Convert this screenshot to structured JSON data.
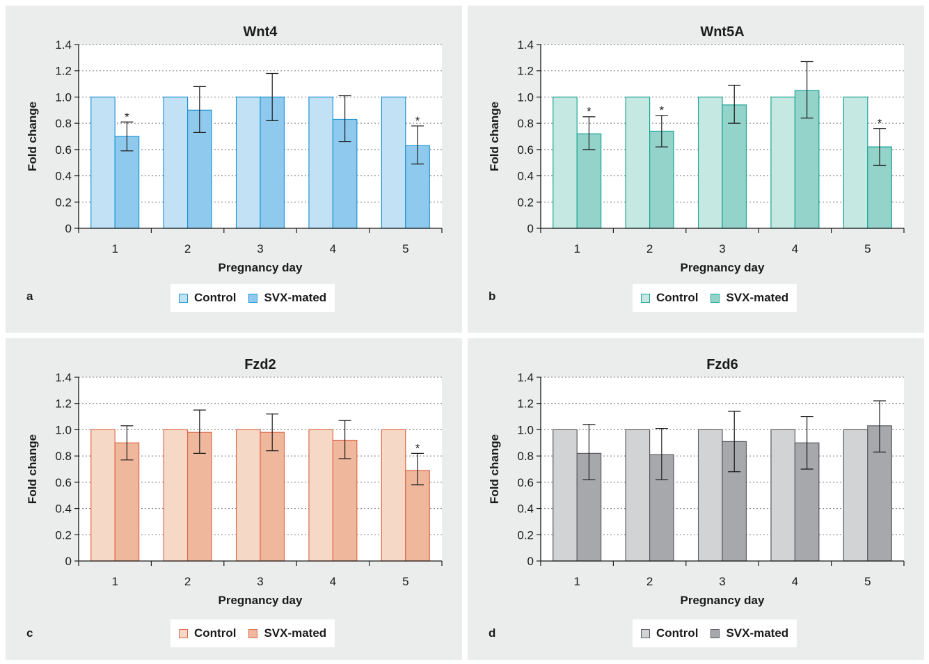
{
  "chart_data": [
    {
      "type": "bar",
      "panel_label": "a",
      "title": "Wnt4",
      "xlabel": "Pregnancy day",
      "ylabel": "Fold change",
      "ylim": [
        0,
        1.4
      ],
      "yticks": [
        "0",
        "0.2",
        "0.4",
        "0.6",
        "0.8",
        "1.0",
        "1.2",
        "1.4"
      ],
      "categories": [
        "1",
        "2",
        "3",
        "4",
        "5"
      ],
      "grid": true,
      "legend_position": "bottom",
      "colors": {
        "control_fill": "#c3e1f5",
        "svx_fill": "#8fcaee",
        "edge": "#1d95d4"
      },
      "series": [
        {
          "name": "Control",
          "values": [
            1.0,
            1.0,
            1.0,
            1.0,
            1.0
          ]
        },
        {
          "name": "SVX-mated",
          "values": [
            0.7,
            0.9,
            1.0,
            0.83,
            0.63
          ],
          "error_upper": [
            0.81,
            1.08,
            1.18,
            1.01,
            0.78
          ],
          "error_lower": [
            0.59,
            0.73,
            0.82,
            0.66,
            0.49
          ],
          "significant": [
            "*",
            "",
            "",
            "",
            "*"
          ]
        }
      ]
    },
    {
      "type": "bar",
      "panel_label": "b",
      "title": "Wnt5A",
      "xlabel": "Pregnancy day",
      "ylabel": "Fold change",
      "ylim": [
        0,
        1.4
      ],
      "yticks": [
        "0",
        "0.2",
        "0.4",
        "0.6",
        "0.8",
        "1.0",
        "1.2",
        "1.4"
      ],
      "categories": [
        "1",
        "2",
        "3",
        "4",
        "5"
      ],
      "grid": true,
      "legend_position": "bottom",
      "colors": {
        "control_fill": "#c6e8e2",
        "svx_fill": "#93d3ca",
        "edge": "#1aa596"
      },
      "series": [
        {
          "name": "Control",
          "values": [
            1.0,
            1.0,
            1.0,
            1.0,
            1.0
          ]
        },
        {
          "name": "SVX-mated",
          "values": [
            0.72,
            0.74,
            0.94,
            1.05,
            0.62
          ],
          "error_upper": [
            0.85,
            0.86,
            1.09,
            1.27,
            0.76
          ],
          "error_lower": [
            0.6,
            0.62,
            0.8,
            0.84,
            0.48
          ],
          "significant": [
            "*",
            "*",
            "",
            "",
            "*"
          ]
        }
      ]
    },
    {
      "type": "bar",
      "panel_label": "c",
      "title": "Fzd2",
      "xlabel": "Pregnancy day",
      "ylabel": "Fold change",
      "ylim": [
        0,
        1.4
      ],
      "yticks": [
        "0",
        "0.2",
        "0.4",
        "0.6",
        "0.8",
        "1.0",
        "1.2",
        "1.4"
      ],
      "categories": [
        "1",
        "2",
        "3",
        "4",
        "5"
      ],
      "grid": true,
      "legend_position": "bottom",
      "colors": {
        "control_fill": "#f6d8c6",
        "svx_fill": "#efb79c",
        "edge": "#dd6a4a"
      },
      "series": [
        {
          "name": "Control",
          "values": [
            1.0,
            1.0,
            1.0,
            1.0,
            1.0
          ]
        },
        {
          "name": "SVX-mated",
          "values": [
            0.9,
            0.98,
            0.98,
            0.92,
            0.69
          ],
          "error_upper": [
            1.03,
            1.15,
            1.12,
            1.07,
            0.82
          ],
          "error_lower": [
            0.77,
            0.82,
            0.84,
            0.78,
            0.58
          ],
          "significant": [
            "",
            "",
            "",
            "",
            "*"
          ]
        }
      ]
    },
    {
      "type": "bar",
      "panel_label": "d",
      "title": "Fzd6",
      "xlabel": "Pregnancy day",
      "ylabel": "Fold change",
      "ylim": [
        0,
        1.4
      ],
      "yticks": [
        "0",
        "0.2",
        "0.4",
        "0.6",
        "0.8",
        "1.0",
        "1.2",
        "1.4"
      ],
      "categories": [
        "1",
        "2",
        "3",
        "4",
        "5"
      ],
      "grid": true,
      "legend_position": "bottom",
      "colors": {
        "control_fill": "#d2d3d5",
        "svx_fill": "#a7a8ac",
        "edge": "#5a5b5e"
      },
      "series": [
        {
          "name": "Control",
          "values": [
            1.0,
            1.0,
            1.0,
            1.0,
            1.0
          ]
        },
        {
          "name": "SVX-mated",
          "values": [
            0.82,
            0.81,
            0.91,
            0.9,
            1.03
          ],
          "error_upper": [
            1.04,
            1.01,
            1.14,
            1.1,
            1.22
          ],
          "error_lower": [
            0.62,
            0.62,
            0.68,
            0.7,
            0.83
          ],
          "significant": [
            "",
            "",
            "",
            "",
            ""
          ]
        }
      ]
    }
  ]
}
